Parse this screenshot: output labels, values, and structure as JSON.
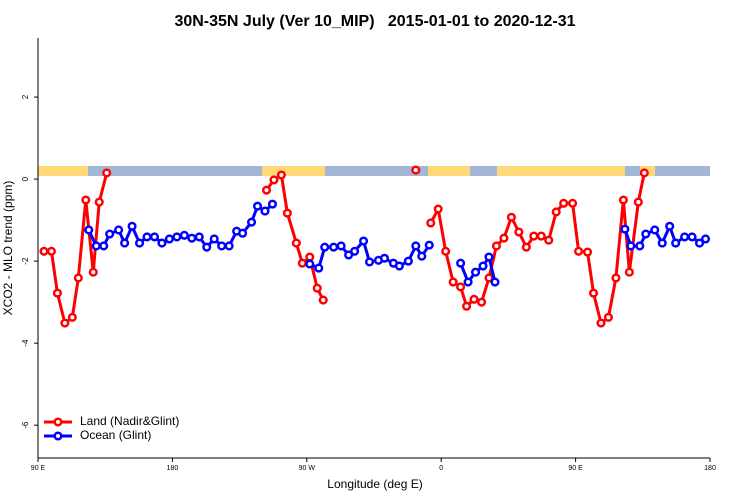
{
  "chart_data": {
    "type": "line",
    "title": "30N-35N July (Ver 10_MIP)   2015-01-01 to 2020-12-31",
    "x_label": "Longitude (deg E)",
    "y_label": "XCO2 - MLO trend (ppm)",
    "xlim": [
      90,
      540
    ],
    "ylim": [
      -6.8,
      3.44
    ],
    "xticks": [
      {
        "value": 90,
        "label": "90 E"
      },
      {
        "value": 180,
        "label": "180"
      },
      {
        "value": 270,
        "label": "90 W"
      },
      {
        "value": 360,
        "label": "0"
      },
      {
        "value": 450,
        "label": "90 E"
      },
      {
        "value": 540,
        "label": "180"
      }
    ],
    "yticks": [
      2,
      0,
      -2,
      -4,
      -6
    ],
    "legend": "bottom-left",
    "series": [
      {
        "name": "Land (Nadir&Glint)",
        "color": "#ff0000",
        "x": [
          94,
          99,
          103,
          108,
          113,
          117,
          122,
          127,
          131,
          136,
          null,
          243,
          248,
          253,
          257,
          263,
          267,
          272,
          277,
          281,
          null,
          343,
          null,
          353,
          358,
          363,
          368,
          373,
          377,
          382,
          387,
          392,
          397,
          402,
          407,
          412,
          417,
          422,
          427,
          432,
          437,
          442,
          448,
          452,
          458,
          462,
          467,
          472,
          477,
          482,
          486,
          492,
          496
        ],
        "values": [
          -1.76,
          -1.76,
          -2.78,
          -3.51,
          -3.37,
          -2.41,
          -0.51,
          -2.27,
          -0.56,
          0.15,
          null,
          -0.27,
          -0.02,
          0.1,
          -0.83,
          -1.56,
          -2.05,
          -1.9,
          -2.66,
          -2.95,
          null,
          0.22,
          null,
          -1.07,
          -0.73,
          -1.76,
          -2.51,
          -2.63,
          -3.1,
          -2.93,
          -3.0,
          -2.41,
          -1.63,
          -1.44,
          -0.93,
          -1.29,
          -1.66,
          -1.39,
          -1.39,
          -1.49,
          -0.8,
          -0.59,
          -0.59,
          -1.76,
          -1.78,
          -2.78,
          -3.51,
          -3.37,
          -2.41,
          -0.51,
          -2.27,
          -0.56,
          0.15
        ]
      },
      {
        "name": "Ocean (Glint)",
        "color": "#0000ff",
        "x": [
          124,
          129,
          134,
          138,
          144,
          148,
          153,
          158,
          163,
          168,
          173,
          178,
          183,
          188,
          193,
          198,
          203,
          208,
          213,
          218,
          223,
          227,
          233,
          237,
          242,
          247,
          null,
          272,
          278,
          282,
          288,
          293,
          298,
          302,
          308,
          312,
          318,
          322,
          328,
          332,
          338,
          343,
          347,
          352,
          null,
          373,
          378,
          383,
          388,
          392,
          396,
          null,
          483,
          487,
          493,
          497,
          503,
          508,
          513,
          517,
          523,
          528,
          533,
          537
        ],
        "values": [
          -1.24,
          -1.63,
          -1.63,
          -1.34,
          -1.24,
          -1.56,
          -1.15,
          -1.56,
          -1.41,
          -1.41,
          -1.56,
          -1.46,
          -1.41,
          -1.37,
          -1.44,
          -1.41,
          -1.66,
          -1.46,
          -1.63,
          -1.63,
          -1.27,
          -1.32,
          -1.05,
          -0.66,
          -0.78,
          -0.61,
          null,
          -2.07,
          -2.17,
          -1.66,
          -1.66,
          -1.63,
          -1.85,
          -1.76,
          -1.51,
          -2.02,
          -1.98,
          -1.93,
          -2.05,
          -2.12,
          -2.0,
          -1.63,
          -1.88,
          -1.61,
          null,
          -2.05,
          -2.51,
          -2.27,
          -2.12,
          -1.9,
          -2.51,
          null,
          -1.22,
          -1.63,
          -1.63,
          -1.34,
          -1.24,
          -1.56,
          -1.15,
          -1.56,
          -1.41,
          -1.41,
          -1.56,
          -1.46
        ]
      }
    ]
  }
}
